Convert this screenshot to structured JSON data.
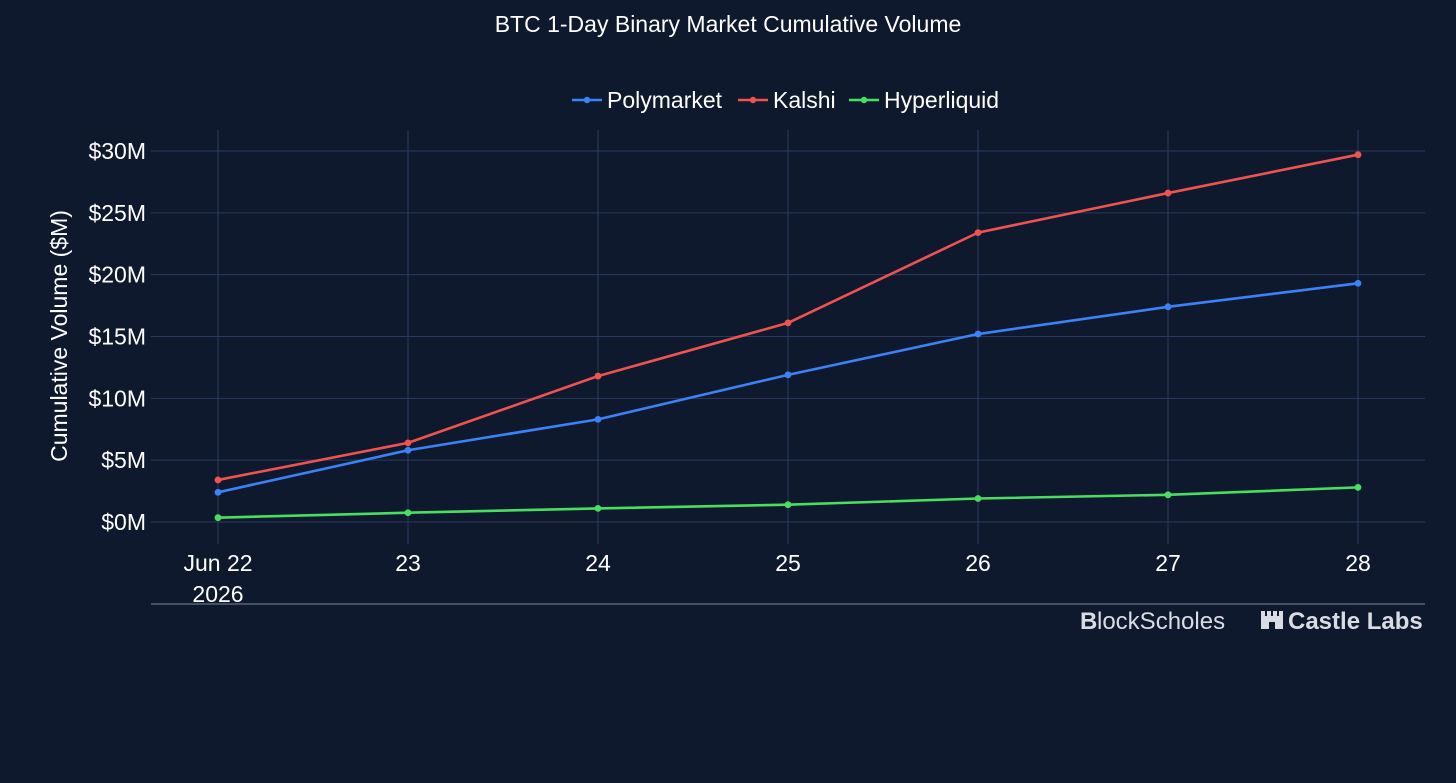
{
  "chart_data": {
    "type": "line",
    "title": "BTC 1-Day Binary Market Cumulative Volume",
    "xlabel": "",
    "ylabel": "Cumulative Volume ($M)",
    "x": [
      "2026-06-22",
      "2026-06-23",
      "2026-06-24",
      "2026-06-25",
      "2026-06-26",
      "2026-06-27",
      "2026-06-28"
    ],
    "x_tick_labels": [
      "Jun 22",
      "23",
      "24",
      "25",
      "26",
      "27",
      "28"
    ],
    "x_tick_sublabel": "2026",
    "y_tick_values": [
      0,
      5,
      10,
      15,
      20,
      25,
      30
    ],
    "y_tick_labels": [
      "$0M",
      "$5M",
      "$10M",
      "$15M",
      "$20M",
      "$25M",
      "$30M"
    ],
    "ylim": [
      -1.2,
      31.6
    ],
    "grid": true,
    "legend_position": "top-center",
    "series": [
      {
        "name": "Polymarket",
        "color": "#3b82f6",
        "values": [
          2.4,
          5.8,
          8.3,
          11.9,
          15.2,
          17.4,
          19.3
        ]
      },
      {
        "name": "Kalshi",
        "color": "#ef5350",
        "values": [
          3.4,
          6.4,
          11.8,
          16.1,
          23.4,
          26.6,
          29.7
        ]
      },
      {
        "name": "Hyperliquid",
        "color": "#4ade60",
        "values": [
          0.35,
          0.75,
          1.1,
          1.4,
          1.9,
          2.2,
          2.8
        ]
      }
    ]
  },
  "branding": {
    "logo1_mark": "B",
    "logo1_text": "lockScholes",
    "logo2_text": "Castle Labs"
  }
}
